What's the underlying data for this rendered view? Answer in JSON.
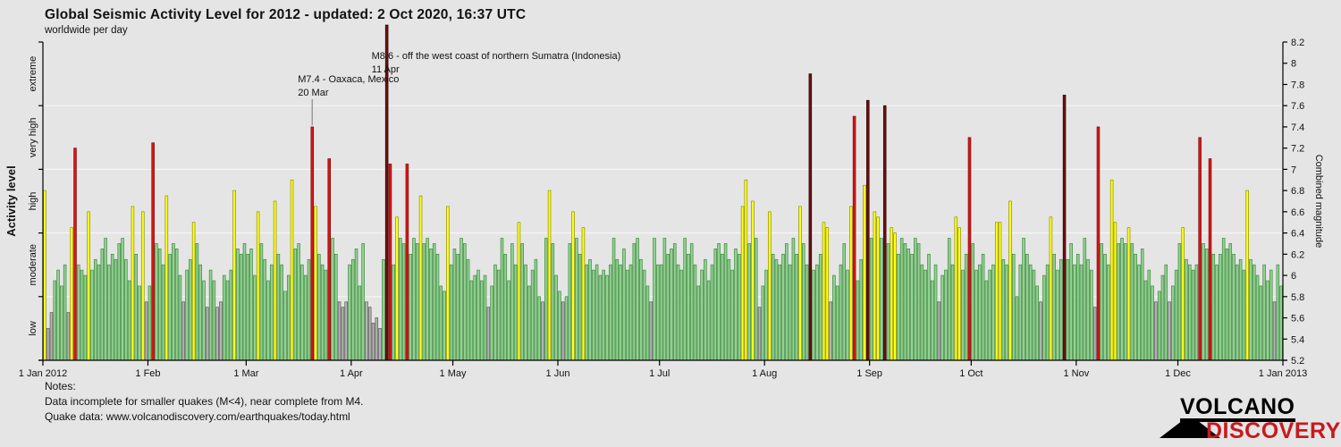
{
  "title": "Global Seismic Activity Level for 2012 - updated:  2 Oct 2020, 16:37 UTC",
  "subtitle": "worldwide per day",
  "notes": {
    "heading": "Notes:",
    "line1": "Data incomplete for smaller quakes (M<4), near complete from M4.",
    "line2": "Quake data: www.volcanodiscovery.com/earthquakes/today.html"
  },
  "logo": {
    "line1": "VOLCANO",
    "line2": "DISCOVERY",
    "accent": "#c8191e"
  },
  "chart_data": {
    "type": "bar",
    "x_unit": "day of 2012",
    "ylim": [
      5.2,
      8.2
    ],
    "y_tick_step": 0.2,
    "grid": "horizontal band boundaries",
    "left_axis_label": "Activity level",
    "right_axis_label": "Combined magnitude",
    "bands": [
      {
        "label": "low",
        "from": 5.2,
        "to": 5.8,
        "fill": "#b4b4b4",
        "stroke": "#5a5a5a"
      },
      {
        "label": "moderate",
        "from": 5.8,
        "to": 6.4,
        "fill": "#93d193",
        "stroke": "#3e8a3e"
      },
      {
        "label": "high",
        "from": 6.4,
        "to": 7.0,
        "fill": "#ffff1e",
        "stroke": "#8f8f00"
      },
      {
        "label": "very high",
        "from": 7.0,
        "to": 7.6,
        "fill": "#dd1414",
        "stroke": "#7d0d0d"
      },
      {
        "label": "extreme",
        "from": 7.6,
        "to": 8.2,
        "fill": "#6f1010",
        "stroke": "#2e0606"
      }
    ],
    "x_ticks": [
      {
        "day": 0,
        "label": "1 Jan 2012"
      },
      {
        "day": 31,
        "label": "1 Feb"
      },
      {
        "day": 60,
        "label": "1 Mar"
      },
      {
        "day": 91,
        "label": "1 Apr"
      },
      {
        "day": 121,
        "label": "1 May"
      },
      {
        "day": 152,
        "label": "1 Jun"
      },
      {
        "day": 182,
        "label": "1 Jul"
      },
      {
        "day": 213,
        "label": "1 Aug"
      },
      {
        "day": 244,
        "label": "1 Sep"
      },
      {
        "day": 274,
        "label": "1 Oct"
      },
      {
        "day": 305,
        "label": "1 Nov"
      },
      {
        "day": 335,
        "label": "1 Dec"
      },
      {
        "day": 366,
        "label": "1 Jan 2013"
      }
    ],
    "annotations": [
      {
        "day_index": 101,
        "lines": [
          "M8.6 - off the west coast of northern Sumatra (Indonesia)",
          "11 Apr"
        ],
        "text_dx": -17,
        "baselines": [
          66,
          81
        ],
        "leader": false
      },
      {
        "day_index": 79,
        "lines": [
          "M7.4 - Oaxaca, Mexico",
          "20 Mar"
        ],
        "text_dx": -16,
        "baselines": [
          92,
          107
        ],
        "leader": true,
        "leader_y1": 111,
        "leader_y2": 140
      }
    ],
    "values": [
      6.8,
      5.5,
      5.65,
      5.95,
      6.05,
      5.9,
      6.1,
      5.65,
      6.45,
      7.2,
      6.1,
      6.05,
      6.0,
      6.6,
      6.05,
      6.15,
      6.1,
      6.25,
      6.35,
      6.1,
      6.2,
      6.15,
      6.3,
      6.35,
      6.15,
      5.95,
      6.65,
      6.2,
      5.9,
      6.6,
      5.75,
      5.9,
      7.25,
      6.3,
      6.25,
      6.1,
      6.75,
      6.2,
      6.3,
      6.25,
      6.0,
      5.75,
      6.05,
      6.15,
      6.5,
      6.3,
      6.1,
      5.95,
      5.7,
      6.05,
      5.95,
      5.7,
      5.75,
      6.0,
      5.95,
      6.05,
      6.8,
      6.25,
      6.2,
      6.3,
      6.2,
      6.25,
      6.0,
      6.6,
      6.3,
      6.15,
      5.95,
      6.1,
      6.7,
      6.2,
      6.1,
      5.85,
      6.0,
      6.9,
      6.25,
      6.3,
      6.1,
      6.0,
      6.15,
      7.4,
      6.65,
      6.2,
      6.1,
      6.05,
      7.1,
      6.35,
      6.2,
      5.75,
      5.7,
      5.75,
      6.1,
      6.15,
      6.25,
      5.9,
      6.3,
      5.75,
      5.7,
      5.55,
      5.6,
      5.5,
      6.15,
      8.6,
      7.05,
      6.1,
      6.55,
      6.35,
      6.3,
      7.05,
      6.2,
      6.35,
      6.3,
      6.75,
      6.3,
      6.35,
      6.25,
      6.3,
      6.2,
      5.9,
      5.85,
      6.65,
      6.1,
      6.25,
      6.2,
      6.35,
      6.3,
      6.15,
      5.95,
      6.0,
      6.05,
      5.95,
      6.0,
      5.7,
      5.9,
      6.1,
      6.05,
      6.35,
      6.2,
      5.95,
      6.3,
      6.1,
      6.5,
      6.3,
      6.1,
      5.9,
      6.05,
      6.15,
      5.8,
      5.75,
      6.35,
      6.8,
      6.3,
      6.0,
      5.85,
      5.75,
      5.8,
      6.3,
      6.6,
      6.35,
      6.2,
      6.45,
      6.1,
      6.15,
      6.05,
      6.1,
      6.0,
      6.05,
      6.0,
      6.1,
      6.35,
      6.15,
      6.1,
      6.25,
      6.05,
      6.1,
      6.3,
      6.35,
      6.15,
      6.05,
      5.9,
      5.75,
      6.35,
      6.1,
      6.1,
      6.35,
      6.2,
      6.25,
      6.3,
      6.1,
      6.05,
      6.35,
      6.2,
      6.3,
      6.1,
      5.9,
      6.05,
      6.15,
      5.95,
      6.1,
      6.25,
      6.3,
      6.2,
      6.3,
      6.15,
      6.05,
      6.25,
      6.2,
      6.65,
      6.9,
      6.3,
      6.7,
      6.35,
      5.7,
      5.9,
      6.05,
      6.6,
      6.2,
      6.15,
      6.1,
      6.2,
      6.3,
      6.1,
      6.35,
      6.2,
      6.65,
      6.3,
      6.1,
      7.9,
      6.05,
      6.1,
      6.2,
      6.5,
      6.45,
      5.75,
      6.0,
      5.9,
      6.1,
      6.3,
      6.05,
      6.65,
      7.5,
      5.95,
      6.15,
      6.85,
      7.65,
      6.35,
      6.6,
      6.55,
      6.35,
      7.6,
      6.3,
      6.45,
      6.4,
      6.2,
      6.35,
      6.3,
      6.25,
      6.2,
      6.35,
      6.3,
      6.1,
      6.05,
      6.2,
      5.95,
      6.1,
      5.75,
      6.0,
      6.05,
      6.35,
      6.1,
      6.55,
      6.45,
      6.05,
      6.2,
      7.3,
      6.3,
      6.05,
      6.1,
      6.2,
      5.95,
      6.05,
      6.1,
      6.5,
      6.5,
      6.15,
      6.1,
      6.7,
      6.2,
      5.8,
      6.1,
      6.35,
      6.2,
      6.1,
      6.05,
      5.9,
      5.75,
      6.0,
      6.1,
      6.55,
      6.2,
      6.05,
      6.15,
      7.7,
      6.15,
      6.3,
      6.1,
      6.2,
      6.1,
      6.35,
      6.15,
      6.05,
      5.7,
      7.4,
      6.3,
      6.2,
      6.1,
      6.9,
      6.5,
      6.3,
      6.35,
      6.3,
      6.45,
      6.3,
      6.2,
      6.1,
      6.25,
      5.95,
      6.05,
      5.9,
      5.75,
      5.85,
      6.0,
      6.1,
      5.75,
      5.9,
      6.05,
      6.3,
      6.45,
      6.15,
      6.1,
      6.05,
      6.1,
      7.3,
      6.3,
      6.25,
      7.1,
      6.2,
      6.1,
      6.2,
      6.35,
      6.25,
      6.3,
      6.2,
      6.1,
      6.15,
      6.05,
      6.8,
      6.15,
      6.1,
      6.0,
      5.9,
      6.1,
      5.95,
      6.05,
      5.75,
      6.1,
      5.9
    ]
  }
}
